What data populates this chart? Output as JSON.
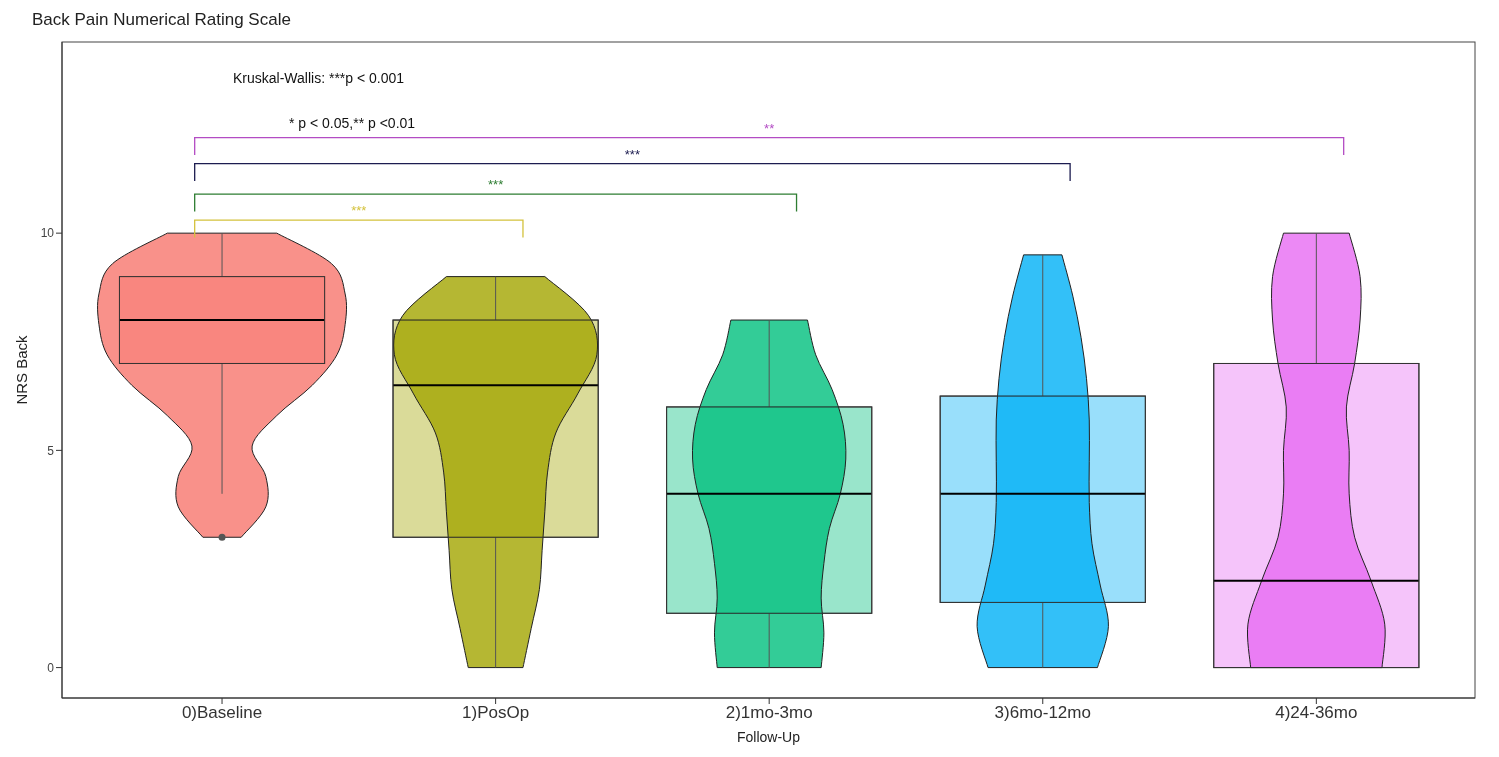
{
  "chart_data": {
    "type": "box",
    "title": "Back Pain Numerical Rating Scale",
    "xlabel": "Follow-Up",
    "ylabel": "NRS Back",
    "categories": [
      "0)Baseline",
      "1)PosOp",
      "2)1mo-3mo",
      "3)6mo-12mo",
      "4)24-36mo"
    ],
    "colors": [
      "#f8766d",
      "#a3a500",
      "#00bf7d",
      "#00b0f6",
      "#e76bf3"
    ],
    "boxes": [
      {
        "low": 4,
        "q1": 7,
        "median": 8,
        "q3": 9,
        "high": 10,
        "outliers": [
          3
        ]
      },
      {
        "low": 0,
        "q1": 3,
        "median": 6.5,
        "q3": 8,
        "high": 9
      },
      {
        "low": 0,
        "q1": 1.25,
        "median": 4,
        "q3": 6,
        "high": 8
      },
      {
        "low": 0,
        "q1": 1.5,
        "median": 4,
        "q3": 6.25,
        "high": 9.5
      },
      {
        "low": 0,
        "q1": 0,
        "median": 2,
        "q3": 7,
        "high": 10
      }
    ],
    "ylim": [
      -0.7,
      14.4
    ],
    "yticks": [
      0,
      5,
      10
    ],
    "annotations": [
      "Kruskal-Wallis: ***p < 0.001",
      "* p < 0.05,** p <0.01",
      "***",
      "***",
      "***",
      "**"
    ]
  }
}
